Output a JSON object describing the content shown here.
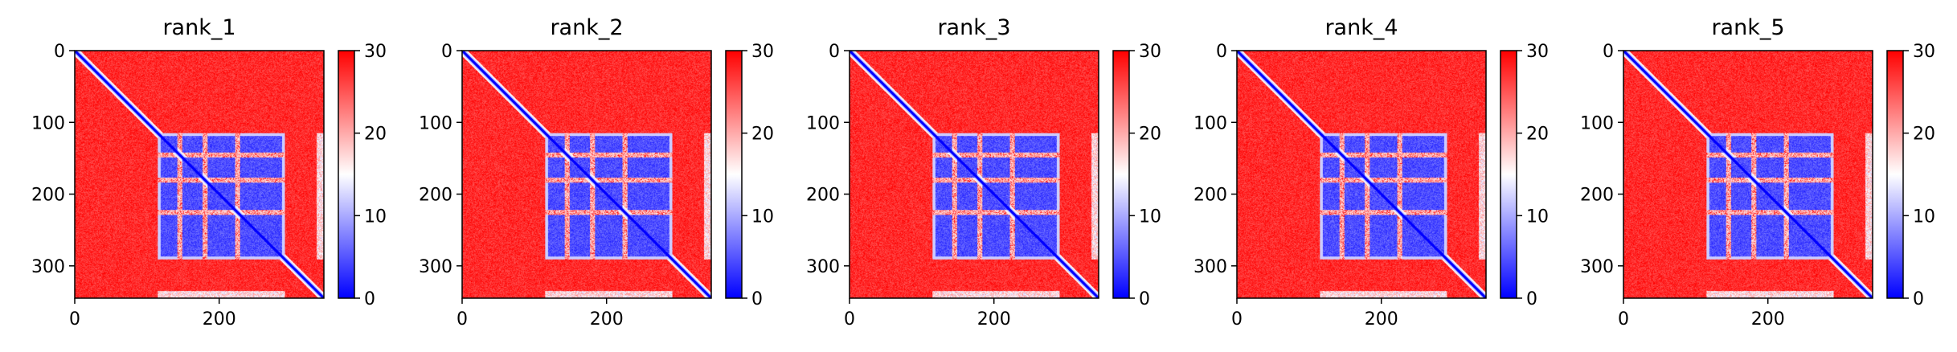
{
  "colors": {
    "low": "#0000ff",
    "mid": "#ffffff",
    "high": "#ff0000",
    "axis": "#000000",
    "background": "#ffffff"
  },
  "chart_data": [
    {
      "type": "heatmap",
      "title": "rank_1",
      "matrix_size": 345,
      "x_ticks": [
        "0",
        "200"
      ],
      "x_tick_values": [
        0,
        200
      ],
      "y_ticks": [
        "0",
        "100",
        "200",
        "300"
      ],
      "y_tick_values": [
        0,
        100,
        200,
        300
      ],
      "colorbar": {
        "ticks": [
          "0",
          "10",
          "20",
          "30"
        ],
        "tick_values": [
          0,
          10,
          20,
          30
        ],
        "min": 0,
        "max": 30,
        "colormap": "bwr"
      },
      "structure": {
        "diagonal_band": [
          0,
          345
        ],
        "low_block": [
          115,
          290
        ],
        "stripes": [
          145,
          180,
          225
        ],
        "extra_low_segment": [
          335,
          345
        ]
      }
    },
    {
      "type": "heatmap",
      "title": "rank_2",
      "matrix_size": 345,
      "x_ticks": [
        "0",
        "200"
      ],
      "x_tick_values": [
        0,
        200
      ],
      "y_ticks": [
        "0",
        "100",
        "200",
        "300"
      ],
      "y_tick_values": [
        0,
        100,
        200,
        300
      ],
      "colorbar": {
        "ticks": [
          "0",
          "10",
          "20",
          "30"
        ],
        "tick_values": [
          0,
          10,
          20,
          30
        ],
        "min": 0,
        "max": 30,
        "colormap": "bwr"
      },
      "structure": {
        "diagonal_band": [
          0,
          345
        ],
        "low_block": [
          115,
          290
        ],
        "stripes": [
          145,
          180,
          225
        ],
        "extra_low_segment": [
          335,
          345
        ]
      }
    },
    {
      "type": "heatmap",
      "title": "rank_3",
      "matrix_size": 345,
      "x_ticks": [
        "0",
        "200"
      ],
      "x_tick_values": [
        0,
        200
      ],
      "y_ticks": [
        "0",
        "100",
        "200",
        "300"
      ],
      "y_tick_values": [
        0,
        100,
        200,
        300
      ],
      "colorbar": {
        "ticks": [
          "0",
          "10",
          "20",
          "30"
        ],
        "tick_values": [
          0,
          10,
          20,
          30
        ],
        "min": 0,
        "max": 30,
        "colormap": "bwr"
      },
      "structure": {
        "diagonal_band": [
          0,
          345
        ],
        "low_block": [
          115,
          290
        ],
        "stripes": [
          145,
          180,
          225
        ],
        "extra_low_segment": [
          335,
          345
        ]
      }
    },
    {
      "type": "heatmap",
      "title": "rank_4",
      "matrix_size": 345,
      "x_ticks": [
        "0",
        "200"
      ],
      "x_tick_values": [
        0,
        200
      ],
      "y_ticks": [
        "0",
        "100",
        "200",
        "300"
      ],
      "y_tick_values": [
        0,
        100,
        200,
        300
      ],
      "colorbar": {
        "ticks": [
          "0",
          "10",
          "20",
          "30"
        ],
        "tick_values": [
          0,
          10,
          20,
          30
        ],
        "min": 0,
        "max": 30,
        "colormap": "bwr"
      },
      "structure": {
        "diagonal_band": [
          0,
          345
        ],
        "low_block": [
          115,
          290
        ],
        "stripes": [
          145,
          180,
          225
        ],
        "extra_low_segment": [
          335,
          345
        ]
      }
    },
    {
      "type": "heatmap",
      "title": "rank_5",
      "matrix_size": 345,
      "x_ticks": [
        "0",
        "200"
      ],
      "x_tick_values": [
        0,
        200
      ],
      "y_ticks": [
        "0",
        "100",
        "200",
        "300"
      ],
      "y_tick_values": [
        0,
        100,
        200,
        300
      ],
      "colorbar": {
        "ticks": [
          "0",
          "10",
          "20",
          "30"
        ],
        "tick_values": [
          0,
          10,
          20,
          30
        ],
        "min": 0,
        "max": 30,
        "colormap": "bwr"
      },
      "structure": {
        "diagonal_band": [
          0,
          345
        ],
        "low_block": [
          115,
          290
        ],
        "stripes": [
          145,
          180,
          225
        ],
        "extra_low_segment": [
          335,
          345
        ]
      }
    }
  ]
}
